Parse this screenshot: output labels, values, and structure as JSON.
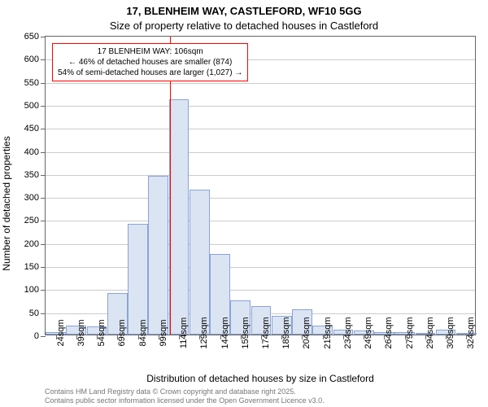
{
  "chart": {
    "type": "histogram",
    "title_line1": "17, BLENHEIM WAY, CASTLEFORD, WF10 5GG",
    "title_line2": "Size of property relative to detached houses in Castleford",
    "yaxis_label": "Number of detached properties",
    "xaxis_label": "Distribution of detached houses by size in Castleford",
    "ylim": [
      0,
      650
    ],
    "ytick_step": 50,
    "yticks": [
      0,
      50,
      100,
      150,
      200,
      250,
      300,
      350,
      400,
      450,
      500,
      550,
      600,
      650
    ],
    "categories": [
      "24sqm",
      "39sqm",
      "54sqm",
      "69sqm",
      "84sqm",
      "99sqm",
      "114sqm",
      "129sqm",
      "144sqm",
      "159sqm",
      "174sqm",
      "189sqm",
      "204sqm",
      "219sqm",
      "234sqm",
      "249sqm",
      "264sqm",
      "279sqm",
      "294sqm",
      "309sqm",
      "324sqm"
    ],
    "values": [
      5,
      20,
      18,
      90,
      240,
      345,
      510,
      315,
      175,
      75,
      62,
      40,
      55,
      20,
      10,
      8,
      6,
      5,
      4,
      10,
      4
    ],
    "bar_fill": "#dbe4f2",
    "bar_border": "#8aa4d6",
    "grid_color": "#cccccc",
    "background_color": "#ffffff",
    "axis_color": "#666666",
    "marker": {
      "x_position": 5.55,
      "color": "#ff0000"
    },
    "annotation": {
      "border_color": "#ff0000",
      "line1": "17 BLENHEIM WAY: 106sqm",
      "line2": "← 46% of detached houses are smaller (874)",
      "line3": "54% of semi-detached houses are larger (1,027) →"
    },
    "footer": {
      "line1": "Contains HM Land Registry data © Crown copyright and database right 2025.",
      "line2": "Contains public sector information licensed under the Open Government Licence v3.0."
    },
    "title_fontsize": 13,
    "label_fontsize": 12,
    "tick_fontsize": 11,
    "annotation_fontsize": 10,
    "footer_fontsize": 9
  }
}
